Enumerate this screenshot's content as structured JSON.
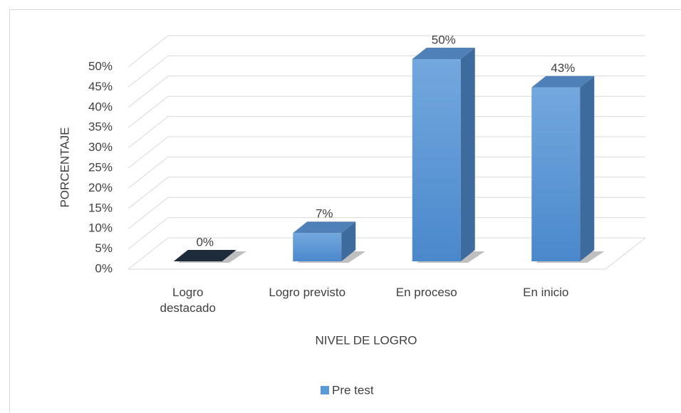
{
  "chart_data": {
    "type": "bar3d",
    "y_label": "PORCENTAJE",
    "x_label": "NIVEL DE LOGRO",
    "categories": [
      "Logro destacado",
      "Logro previsto",
      "En proceso",
      "En inicio"
    ],
    "series": [
      {
        "name": "Pre test",
        "color": "#5b9bd5",
        "values": [
          0,
          7,
          50,
          43
        ],
        "value_labels": [
          "0%",
          "7%",
          "50%",
          "43%"
        ]
      }
    ],
    "ylim": [
      0,
      50
    ],
    "yticks": [
      {
        "value": 0,
        "label": "0%"
      },
      {
        "value": 5,
        "label": "5%"
      },
      {
        "value": 10,
        "label": "10%"
      },
      {
        "value": 15,
        "label": "15%"
      },
      {
        "value": 20,
        "label": "20%"
      },
      {
        "value": 25,
        "label": "25%"
      },
      {
        "value": 30,
        "label": "30%"
      },
      {
        "value": 35,
        "label": "35%"
      },
      {
        "value": 40,
        "label": "40%"
      },
      {
        "value": 45,
        "label": "45%"
      },
      {
        "value": 50,
        "label": "50%"
      }
    ],
    "grid": true,
    "legend": "bottom"
  }
}
